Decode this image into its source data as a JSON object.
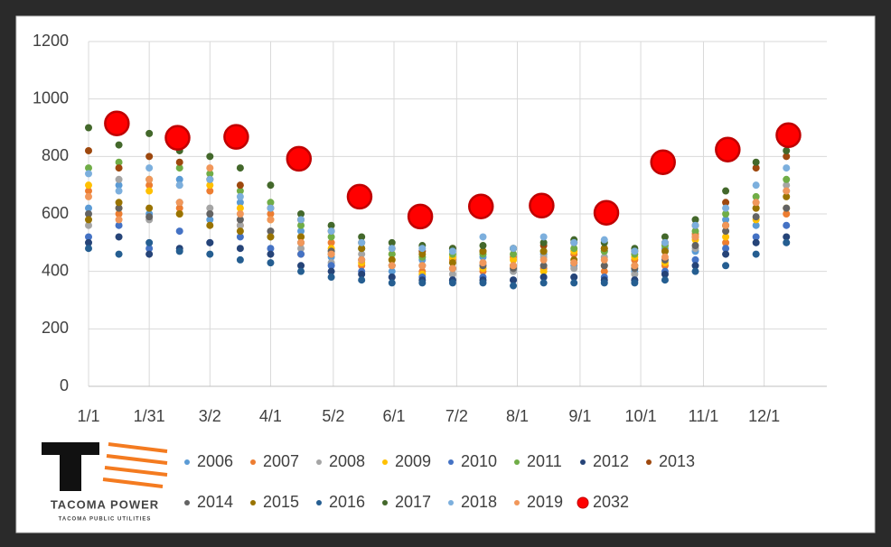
{
  "chart_data": {
    "type": "scatter",
    "x": [
      0,
      15,
      30,
      45,
      60,
      75,
      90,
      105,
      120,
      135,
      150,
      165,
      180,
      195,
      210,
      225,
      240,
      255,
      270,
      285,
      300,
      315,
      330,
      345
    ],
    "xlim": [
      0,
      365
    ],
    "xticks": [
      {
        "value": 0,
        "label": "1/1"
      },
      {
        "value": 30,
        "label": "1/31"
      },
      {
        "value": 60,
        "label": "3/2"
      },
      {
        "value": 90,
        "label": "4/1"
      },
      {
        "value": 121,
        "label": "5/2"
      },
      {
        "value": 151,
        "label": "6/1"
      },
      {
        "value": 182,
        "label": "7/2"
      },
      {
        "value": 212,
        "label": "8/1"
      },
      {
        "value": 243,
        "label": "9/1"
      },
      {
        "value": 273,
        "label": "10/1"
      },
      {
        "value": 304,
        "label": "11/1"
      },
      {
        "value": 334,
        "label": "12/1"
      }
    ],
    "ylim": [
      0,
      1200
    ],
    "yticks": [
      0,
      200,
      400,
      600,
      800,
      1000,
      1200
    ],
    "grid": true,
    "legend": "bottom",
    "series": [
      {
        "name": "2006",
        "color": "#5b9bd5",
        "values": [
          620,
          700,
          600,
          720,
          580,
          640,
          520,
          540,
          450,
          480,
          400,
          440,
          410,
          450,
          400,
          460,
          420,
          470,
          400,
          480,
          470,
          580,
          560,
          680
        ]
      },
      {
        "name": "2007",
        "color": "#ed7d31",
        "values": [
          680,
          600,
          700,
          620,
          680,
          560,
          600,
          460,
          500,
          420,
          460,
          400,
          440,
          400,
          450,
          410,
          460,
          400,
          440,
          420,
          530,
          500,
          620,
          600
        ]
      },
      {
        "name": "2008",
        "color": "#a5a5a5",
        "values": [
          560,
          720,
          580,
          700,
          620,
          560,
          540,
          480,
          430,
          460,
          420,
          450,
          390,
          430,
          400,
          450,
          410,
          450,
          390,
          470,
          480,
          560,
          640,
          700
        ]
      },
      {
        "name": "2009",
        "color": "#ffc000",
        "values": [
          700,
          620,
          680,
          600,
          700,
          620,
          580,
          520,
          480,
          430,
          440,
          390,
          450,
          410,
          440,
          400,
          470,
          420,
          450,
          430,
          510,
          520,
          580,
          620
        ]
      },
      {
        "name": "2010",
        "color": "#4472c4",
        "values": [
          520,
          560,
          480,
          540,
          500,
          520,
          480,
          460,
          420,
          400,
          380,
          380,
          370,
          380,
          370,
          380,
          380,
          380,
          370,
          400,
          440,
          480,
          520,
          560
        ]
      },
      {
        "name": "2011",
        "color": "#70ad47",
        "values": [
          760,
          780,
          720,
          760,
          740,
          680,
          640,
          560,
          520,
          480,
          460,
          450,
          460,
          460,
          460,
          470,
          480,
          470,
          460,
          490,
          540,
          600,
          660,
          720
        ]
      },
      {
        "name": "2012",
        "color": "#264478",
        "values": [
          500,
          520,
          460,
          480,
          500,
          480,
          460,
          420,
          400,
          390,
          380,
          370,
          370,
          370,
          370,
          380,
          380,
          370,
          370,
          390,
          420,
          460,
          500,
          520
        ]
      },
      {
        "name": "2013",
        "color": "#9e480e",
        "values": [
          820,
          760,
          800,
          780,
          720,
          700,
          620,
          580,
          540,
          500,
          480,
          470,
          480,
          470,
          480,
          490,
          500,
          480,
          470,
          500,
          560,
          640,
          760,
          800
        ]
      },
      {
        "name": "2014",
        "color": "#636363",
        "values": [
          600,
          620,
          590,
          640,
          600,
          580,
          540,
          500,
          470,
          440,
          420,
          420,
          410,
          420,
          410,
          420,
          430,
          420,
          410,
          440,
          490,
          540,
          590,
          620
        ]
      },
      {
        "name": "2015",
        "color": "#997300",
        "values": [
          580,
          640,
          620,
          600,
          560,
          540,
          520,
          520,
          460,
          480,
          440,
          460,
          430,
          470,
          420,
          470,
          440,
          480,
          420,
          470,
          520,
          560,
          620,
          660
        ]
      },
      {
        "name": "2016",
        "color": "#255e91",
        "values": [
          480,
          460,
          500,
          470,
          460,
          440,
          430,
          400,
          380,
          370,
          360,
          360,
          360,
          360,
          350,
          360,
          360,
          360,
          360,
          370,
          400,
          420,
          460,
          500
        ]
      },
      {
        "name": "2017",
        "color": "#43682b",
        "values": [
          900,
          840,
          880,
          820,
          800,
          760,
          700,
          600,
          560,
          520,
          500,
          490,
          480,
          490,
          480,
          500,
          510,
          500,
          480,
          520,
          580,
          680,
          780,
          820
        ]
      },
      {
        "name": "2018",
        "color": "#7cafdd",
        "values": [
          740,
          680,
          760,
          700,
          720,
          660,
          620,
          580,
          540,
          500,
          480,
          480,
          470,
          520,
          480,
          520,
          500,
          510,
          470,
          500,
          560,
          620,
          700,
          760
        ]
      },
      {
        "name": "2019",
        "color": "#f1975a",
        "values": [
          660,
          580,
          720,
          640,
          760,
          600,
          580,
          500,
          460,
          440,
          420,
          420,
          410,
          430,
          420,
          440,
          430,
          440,
          420,
          450,
          520,
          560,
          640,
          680
        ]
      },
      {
        "name": "2032",
        "color": "#ff0000",
        "x": [
          14,
          44,
          73,
          104,
          134,
          164,
          194,
          224,
          256,
          284,
          316,
          346
        ],
        "values": [
          915,
          865,
          868,
          792,
          660,
          591,
          626,
          629,
          604,
          780,
          824,
          874
        ]
      }
    ]
  },
  "logo": {
    "name": "TACOMA POWER",
    "subtitle": "TACOMA PUBLIC UTILITIES"
  }
}
